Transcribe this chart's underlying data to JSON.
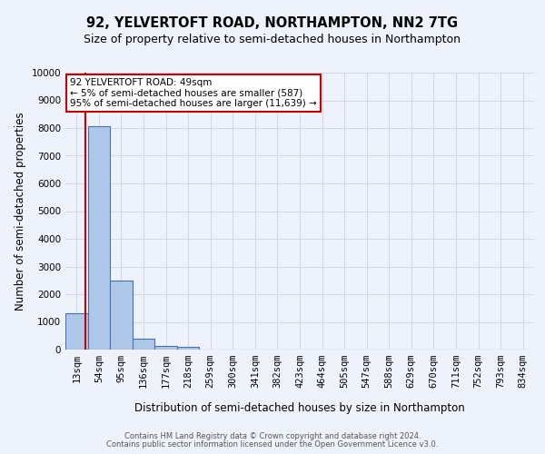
{
  "title": "92, YELVERTOFT ROAD, NORTHAMPTON, NN2 7TG",
  "subtitle": "Size of property relative to semi-detached houses in Northampton",
  "xlabel_bottom": "Distribution of semi-detached houses by size in Northampton",
  "ylabel": "Number of semi-detached properties",
  "footer_line1": "Contains HM Land Registry data © Crown copyright and database right 2024.",
  "footer_line2": "Contains public sector information licensed under the Open Government Licence v3.0.",
  "categories": [
    "13sqm",
    "54sqm",
    "95sqm",
    "136sqm",
    "177sqm",
    "218sqm",
    "259sqm",
    "300sqm",
    "341sqm",
    "382sqm",
    "423sqm",
    "464sqm",
    "505sqm",
    "547sqm",
    "588sqm",
    "629sqm",
    "670sqm",
    "711sqm",
    "752sqm",
    "793sqm",
    "834sqm"
  ],
  "bar_values": [
    1300,
    8050,
    2500,
    380,
    130,
    90,
    0,
    0,
    0,
    0,
    0,
    0,
    0,
    0,
    0,
    0,
    0,
    0,
    0,
    0,
    0
  ],
  "bar_color": "#aec6e8",
  "bar_edge_color": "#4472b8",
  "grid_color": "#d0d8e8",
  "background_color": "#eef3fb",
  "annotation_box_color": "#ffffff",
  "annotation_border_color": "#cc0000",
  "property_line_color": "#cc0000",
  "property_label": "92 YELVERTOFT ROAD: 49sqm",
  "annotation_line1": "← 5% of semi-detached houses are smaller (587)",
  "annotation_line2": "95% of semi-detached houses are larger (11,639) →",
  "ylim": [
    0,
    10000
  ],
  "yticks": [
    0,
    1000,
    2000,
    3000,
    4000,
    5000,
    6000,
    7000,
    8000,
    9000,
    10000
  ],
  "title_fontsize": 10.5,
  "subtitle_fontsize": 9,
  "axis_fontsize": 8.5,
  "tick_fontsize": 7.5,
  "annotation_fontsize": 7.5,
  "footer_fontsize": 6
}
